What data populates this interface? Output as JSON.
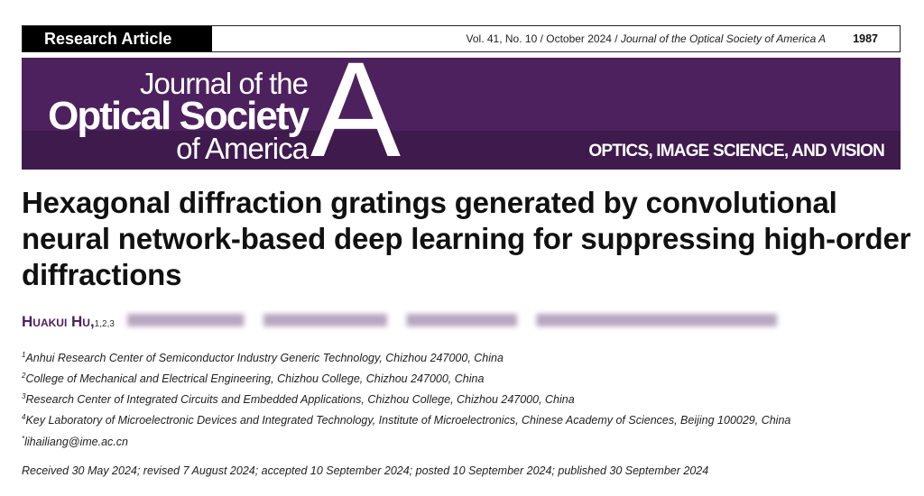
{
  "header": {
    "article_type": "Research Article",
    "volume_info": "Vol. 41, No. 10 / October 2024 / ",
    "journal_italic": "Journal of the Optical Society of America A",
    "page_number": "1987"
  },
  "banner": {
    "line1": "Journal of the",
    "line2": "Optical Society",
    "line3": "of America",
    "letter": "A",
    "subtitle": "OPTICS, IMAGE SCIENCE, AND VISION",
    "colors": {
      "upper": "#4d215e",
      "lower": "#3e1a4d"
    }
  },
  "title": "Hexagonal diffraction gratings generated by convolutional neural network-based deep learning for suppressing high-order diffractions",
  "authors": {
    "first": "Huakui Hu,",
    "first_sup": "1,2,3"
  },
  "affiliations": [
    {
      "sup": "1",
      "text": "Anhui Research Center of Semiconductor Industry Generic Technology, Chizhou 247000, China"
    },
    {
      "sup": "2",
      "text": "College of Mechanical and Electrical Engineering, Chizhou College, Chizhou 247000, China"
    },
    {
      "sup": "3",
      "text": "Research Center of Integrated Circuits and Embedded Applications, Chizhou College, Chizhou 247000, China"
    },
    {
      "sup": "4",
      "text": "Key Laboratory of Microelectronic Devices and Integrated Technology, Institute of Microelectronics, Chinese Academy of Sciences, Beijing 100029, China"
    },
    {
      "sup": "*",
      "text": "lihailiang@ime.ac.cn"
    }
  ],
  "dates": "Received 30 May 2024; revised 7 August 2024; accepted 10 September 2024; posted 10 September 2024; published 30 September 2024"
}
